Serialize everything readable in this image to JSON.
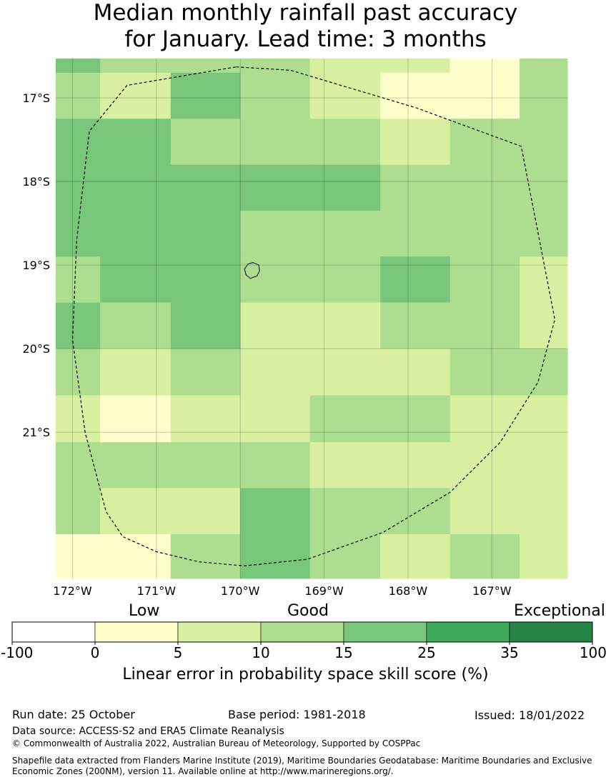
{
  "title": {
    "line1": "Median monthly rainfall past accuracy",
    "line2": "for January. Lead time: 3 months"
  },
  "map": {
    "lon_min": -172.2,
    "lon_max": -166.1,
    "lat_top": -16.53,
    "lat_bottom": -22.75,
    "lon_ticks": [
      {
        "value": -172,
        "label": "172°W"
      },
      {
        "value": -171,
        "label": "171°W"
      },
      {
        "value": -170,
        "label": "170°W"
      },
      {
        "value": -169,
        "label": "169°W"
      },
      {
        "value": -168,
        "label": "168°W"
      },
      {
        "value": -167,
        "label": "167°W"
      }
    ],
    "lat_ticks": [
      {
        "value": -17,
        "label": "17°S"
      },
      {
        "value": -18,
        "label": "18°S"
      },
      {
        "value": -19,
        "label": "19°S"
      },
      {
        "value": -20,
        "label": "20°S"
      },
      {
        "value": -21,
        "label": "21°S"
      }
    ],
    "lon_edges": [
      -172.2,
      -171.67,
      -170.83,
      -170.0,
      -169.17,
      -168.33,
      -167.5,
      -166.67,
      -166.1
    ],
    "lat_edges": [
      -16.53,
      -16.7,
      -17.25,
      -17.8,
      -18.35,
      -18.9,
      -19.45,
      -20.0,
      -20.56,
      -21.12,
      -21.67,
      -22.22,
      -22.75
    ],
    "grid": [
      [
        4,
        3,
        3,
        3,
        2,
        2,
        1,
        3
      ],
      [
        3,
        2,
        4,
        3,
        2,
        1,
        1,
        3
      ],
      [
        4,
        4,
        3,
        3,
        3,
        2,
        3,
        3
      ],
      [
        4,
        4,
        4,
        4,
        4,
        3,
        3,
        3
      ],
      [
        4,
        4,
        4,
        3,
        3,
        3,
        3,
        3
      ],
      [
        3,
        4,
        4,
        3,
        3,
        4,
        3,
        2
      ],
      [
        4,
        3,
        4,
        2,
        2,
        3,
        3,
        2
      ],
      [
        3,
        2,
        3,
        2,
        2,
        2,
        3,
        3
      ],
      [
        2,
        1,
        2,
        2,
        3,
        3,
        2,
        2
      ],
      [
        3,
        3,
        3,
        3,
        2,
        2,
        2,
        2
      ],
      [
        3,
        2,
        2,
        4,
        3,
        3,
        2,
        2
      ],
      [
        1,
        1,
        3,
        4,
        3,
        2,
        3,
        2
      ]
    ],
    "eez_boundary_lonlat": [
      [
        -170.05,
        -16.63
      ],
      [
        -169.4,
        -16.67
      ],
      [
        -167.9,
        -17.12
      ],
      [
        -166.65,
        -17.58
      ],
      [
        -166.25,
        -19.65
      ],
      [
        -166.45,
        -20.4
      ],
      [
        -166.9,
        -21.12
      ],
      [
        -167.5,
        -21.72
      ],
      [
        -168.3,
        -22.2
      ],
      [
        -169.2,
        -22.52
      ],
      [
        -169.95,
        -22.6
      ],
      [
        -170.5,
        -22.55
      ],
      [
        -171.0,
        -22.43
      ],
      [
        -171.4,
        -22.25
      ],
      [
        -171.6,
        -21.95
      ],
      [
        -171.85,
        -21.0
      ],
      [
        -172.0,
        -19.9
      ],
      [
        -171.95,
        -18.7
      ],
      [
        -171.8,
        -17.4
      ],
      [
        -171.35,
        -16.85
      ],
      [
        -170.05,
        -16.63
      ]
    ],
    "island_outline_lonlat": [
      [
        -169.85,
        -18.97
      ],
      [
        -169.78,
        -19.0
      ],
      [
        -169.77,
        -19.07
      ],
      [
        -169.8,
        -19.13
      ],
      [
        -169.88,
        -19.16
      ],
      [
        -169.93,
        -19.12
      ],
      [
        -169.95,
        -19.05
      ],
      [
        -169.91,
        -18.99
      ],
      [
        -169.85,
        -18.97
      ]
    ]
  },
  "colorbar": {
    "colors": [
      "#ffffff",
      "#ffffcc",
      "#d9f0a3",
      "#addd8e",
      "#78c679",
      "#41ab5d",
      "#238443"
    ],
    "tick_labels": [
      "-100",
      "0",
      "5",
      "10",
      "15",
      "25",
      "35",
      "100"
    ],
    "categories": [
      "Low",
      "Good",
      "Exceptional"
    ],
    "label": "Linear error in probability space skill score (%)"
  },
  "footer": {
    "run_date": "Run date: 25 October",
    "base_period": "Base period: 1981-2018",
    "issued": "Issued: 18/01/2022",
    "data_source": "Data source: ACCESS-S2 and ERA5 Climate Reanalysis",
    "copyright": "© Commonwealth of Australia 2022, Australian Bureau of Meteorology, Supported by COSPPac",
    "shapefile_line1": "Shapefile data extracted from Flanders Marine Institute (2019), Maritime Boundaries Geodatabase: Maritime Boundaries and Exclusive",
    "shapefile_line2": "Economic Zones (200NM), version 11. Available online at http://www.marineregions.org/."
  }
}
